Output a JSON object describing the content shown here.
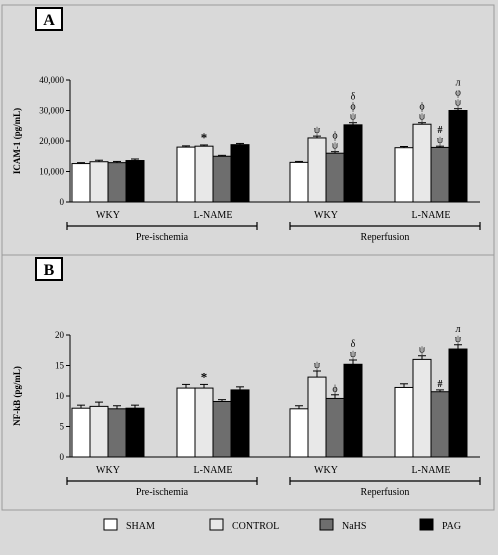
{
  "panels": [
    {
      "letter": "A",
      "ylabel": "ICAM-1 (pg/mL)",
      "yticks": [
        "0",
        "10,000",
        "20,000",
        "30,000",
        "40,000"
      ],
      "period_labels": [
        "Pre-ischemia",
        "Reperfusion"
      ]
    },
    {
      "letter": "B",
      "ylabel": "NF-kB (pg/mL)",
      "yticks": [
        "0",
        "5",
        "10",
        "15",
        "20"
      ],
      "period_labels": [
        "Pre-ischemia",
        "Reperfusion"
      ]
    }
  ],
  "legend": [
    {
      "label": "SHAM",
      "color": "#ffffff"
    },
    {
      "label": "CONTROL",
      "color": "#e8e8e8"
    },
    {
      "label": "NaHS",
      "color": "#6e6e6e"
    },
    {
      "label": "PAG",
      "color": "#000000"
    }
  ],
  "chart_data": [
    {
      "type": "bar",
      "title": "",
      "xlabel": "",
      "ylabel": "ICAM-1 (pg/mL)",
      "ylim": [
        0,
        40000
      ],
      "categories": [
        "WKY",
        "L-NAME",
        "WKY",
        "L-NAME"
      ],
      "periods": [
        {
          "label": "Pre-ischemia",
          "categories": [
            0,
            1
          ]
        },
        {
          "label": "Reperfusion",
          "categories": [
            2,
            3
          ]
        }
      ],
      "series": [
        {
          "name": "SHAM",
          "color": "#ffffff",
          "values": [
            12600,
            18000,
            13000,
            17800
          ],
          "errors": [
            300,
            400,
            300,
            400
          ]
        },
        {
          "name": "CONTROL",
          "color": "#e8e8e8",
          "values": [
            13200,
            18300,
            21000,
            25500
          ],
          "errors": [
            500,
            400,
            600,
            500
          ]
        },
        {
          "name": "NaHS",
          "color": "#6e6e6e",
          "values": [
            12900,
            15000,
            16000,
            17900
          ],
          "errors": [
            400,
            300,
            500,
            400
          ]
        },
        {
          "name": "PAG",
          "color": "#000000",
          "values": [
            13600,
            18800,
            25300,
            30000
          ],
          "errors": [
            500,
            400,
            700,
            600
          ]
        }
      ],
      "annotations": [
        {
          "category": 1,
          "series": 1,
          "text": "*"
        },
        {
          "category": 2,
          "series": 1,
          "text": "ψ"
        },
        {
          "category": 2,
          "series": 2,
          "text": "ϕ\nψ"
        },
        {
          "category": 2,
          "series": 3,
          "text": "δ\nϕ\nψ"
        },
        {
          "category": 3,
          "series": 1,
          "text": "ϕ\nψ"
        },
        {
          "category": 3,
          "series": 2,
          "text": "#\nψ"
        },
        {
          "category": 3,
          "series": 3,
          "text": "л\nφ\nψ"
        }
      ]
    },
    {
      "type": "bar",
      "title": "",
      "xlabel": "",
      "ylabel": "NF-kB (pg/mL)",
      "ylim": [
        0,
        20
      ],
      "categories": [
        "WKY",
        "L-NAME",
        "WKY",
        "L-NAME"
      ],
      "periods": [
        {
          "label": "Pre-ischemia",
          "categories": [
            0,
            1
          ]
        },
        {
          "label": "Reperfusion",
          "categories": [
            2,
            3
          ]
        }
      ],
      "series": [
        {
          "name": "SHAM",
          "color": "#ffffff",
          "values": [
            8.0,
            11.3,
            7.9,
            11.4
          ],
          "errors": [
            0.5,
            0.6,
            0.5,
            0.6
          ]
        },
        {
          "name": "CONTROL",
          "color": "#e8e8e8",
          "values": [
            8.3,
            11.3,
            13.1,
            16.0
          ],
          "errors": [
            0.7,
            0.6,
            1.0,
            0.6
          ]
        },
        {
          "name": "NaHS",
          "color": "#6e6e6e",
          "values": [
            7.9,
            9.1,
            9.6,
            10.7
          ],
          "errors": [
            0.5,
            0.3,
            0.6,
            0.3
          ]
        },
        {
          "name": "PAG",
          "color": "#000000",
          "values": [
            8.0,
            11.0,
            15.2,
            17.7
          ],
          "errors": [
            0.5,
            0.5,
            0.7,
            0.7
          ]
        }
      ],
      "annotations": [
        {
          "category": 1,
          "series": 1,
          "text": "*"
        },
        {
          "category": 2,
          "series": 1,
          "text": "ψ"
        },
        {
          "category": 2,
          "series": 2,
          "text": "ϕ"
        },
        {
          "category": 2,
          "series": 3,
          "text": "δ\nψ"
        },
        {
          "category": 3,
          "series": 1,
          "text": "ψ"
        },
        {
          "category": 3,
          "series": 2,
          "text": "#"
        },
        {
          "category": 3,
          "series": 3,
          "text": "л\nψ"
        }
      ]
    }
  ]
}
